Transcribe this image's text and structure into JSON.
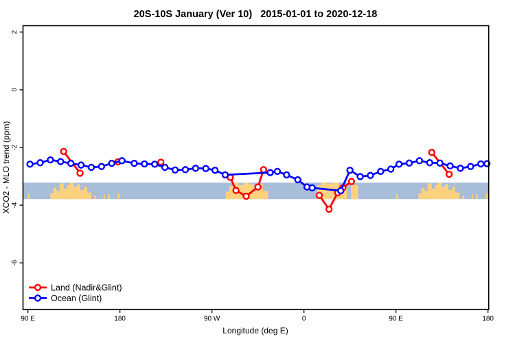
{
  "page": {
    "background": "#ffffff"
  },
  "chart_data": {
    "type": "line",
    "title": "20S-10S January (Ver 10)   2015-01-01 to 2020-12-18",
    "xlabel": "Longitude (deg E)",
    "ylabel": "XCO2 - MLO trend (ppm)",
    "xlim": [
      85.2,
      540.7
    ],
    "ylim": [
      -7.62,
      2.22
    ],
    "grid": "off",
    "legend_position": "bottom-left",
    "x_ticks": [
      {
        "value": 90,
        "label": "90 E"
      },
      {
        "value": 180,
        "label": "180"
      },
      {
        "value": 270,
        "label": "90 W"
      },
      {
        "value": 360,
        "label": "0"
      },
      {
        "value": 450,
        "label": "90 E"
      },
      {
        "value": 540,
        "label": "180"
      }
    ],
    "y_ticks": [
      {
        "value": 2,
        "label": "2"
      },
      {
        "value": 0,
        "label": "0"
      },
      {
        "value": -2,
        "label": "-2"
      },
      {
        "value": -4,
        "label": "-4"
      },
      {
        "value": -6,
        "label": "-6"
      }
    ],
    "reference_band": {
      "y_from": -3.22,
      "y_to": -3.79,
      "color": "#a8bdd8"
    },
    "land_mask": {
      "color": "#ffd27e",
      "blocks": [
        [
          90,
          91.5,
          0.3
        ],
        [
          112,
          115,
          0.35
        ],
        [
          115,
          118,
          0.7
        ],
        [
          118,
          121,
          0.5
        ],
        [
          121,
          125,
          0.95
        ],
        [
          125,
          128,
          0.65
        ],
        [
          128,
          131,
          0.85
        ],
        [
          131,
          135,
          1
        ],
        [
          135,
          138,
          0.75
        ],
        [
          138,
          141,
          0.9
        ],
        [
          141,
          145,
          0.55
        ],
        [
          145,
          148,
          0.75
        ],
        [
          148,
          152,
          0.4
        ],
        [
          155,
          156.5,
          0.2
        ],
        [
          164,
          165.5,
          0.25
        ],
        [
          168.5,
          170,
          0.3
        ],
        [
          178,
          179.5,
          0.35
        ],
        [
          283.5,
          287,
          0.45
        ],
        [
          287,
          291,
          0.8
        ],
        [
          291,
          296,
          1
        ],
        [
          296,
          301,
          0.85
        ],
        [
          301,
          306,
          1
        ],
        [
          306,
          311,
          0.9
        ],
        [
          311,
          316,
          0.7
        ],
        [
          316,
          320,
          0.9
        ],
        [
          320,
          325,
          0.5
        ],
        [
          373,
          377,
          0.85
        ],
        [
          377,
          382,
          1
        ],
        [
          382,
          388,
          0.95
        ],
        [
          388,
          394,
          1
        ],
        [
          394,
          398,
          0.8
        ],
        [
          398,
          402,
          0.65
        ],
        [
          406,
          413,
          0.85
        ],
        [
          450,
          451.5,
          0.3
        ],
        [
          472,
          475,
          0.35
        ],
        [
          475,
          478,
          0.7
        ],
        [
          478,
          481,
          0.5
        ],
        [
          481,
          485,
          0.95
        ],
        [
          485,
          488,
          0.65
        ],
        [
          488,
          491,
          0.85
        ],
        [
          491,
          495,
          1
        ],
        [
          495,
          498,
          0.75
        ],
        [
          498,
          501,
          0.9
        ],
        [
          501,
          505,
          0.55
        ],
        [
          505,
          508,
          0.75
        ],
        [
          508,
          512,
          0.4
        ],
        [
          515,
          516.5,
          0.2
        ],
        [
          524,
          525.5,
          0.25
        ],
        [
          528.5,
          530,
          0.3
        ],
        [
          538,
          539.5,
          0.35
        ]
      ]
    },
    "series": [
      {
        "name": "Land (Nadir&Glint)",
        "color": "#ff0000",
        "segments": [
          [
            [
              125,
              -2.14
            ],
            [
              141,
              -2.89
            ]
          ],
          [
            [
              178,
              -2.5
            ]
          ],
          [
            [
              220,
              -2.51
            ]
          ],
          [
            [
              288,
              -3.04
            ],
            [
              293.5,
              -3.49
            ],
            [
              303.5,
              -3.69
            ],
            [
              315,
              -3.37
            ],
            [
              320.5,
              -2.77
            ]
          ],
          [
            [
              375,
              -3.66
            ],
            [
              384.5,
              -4.14
            ],
            [
              393,
              -3.57
            ],
            [
              398,
              -3.4
            ],
            [
              406.5,
              -3.18
            ]
          ],
          [
            [
              485,
              -2.17
            ],
            [
              502,
              -2.93
            ]
          ]
        ]
      },
      {
        "name": "Ocean (Glint)",
        "color": "#0000ff",
        "segments": [
          [
            [
              92,
              -2.58
            ],
            [
              102,
              -2.53
            ],
            [
              112,
              -2.43
            ],
            [
              122,
              -2.49
            ],
            [
              132,
              -2.55
            ],
            [
              142,
              -2.61
            ],
            [
              152,
              -2.69
            ],
            [
              162,
              -2.66
            ],
            [
              172,
              -2.55
            ],
            [
              182,
              -2.46
            ],
            [
              194,
              -2.55
            ],
            [
              204,
              -2.57
            ],
            [
              214,
              -2.58
            ],
            [
              224,
              -2.69
            ],
            [
              234,
              -2.78
            ],
            [
              244,
              -2.77
            ],
            [
              254,
              -2.72
            ],
            [
              264,
              -2.73
            ],
            [
              273,
              -2.79
            ],
            [
              283,
              -2.95
            ],
            [
              327,
              -2.87
            ],
            [
              334,
              -2.83
            ],
            [
              343,
              -2.95
            ],
            [
              354,
              -3.12
            ],
            [
              363,
              -3.37
            ],
            [
              368,
              -3.4
            ],
            [
              396,
              -3.5
            ],
            [
              405,
              -2.79
            ],
            [
              415,
              -3.01
            ],
            [
              425,
              -2.97
            ],
            [
              435,
              -2.83
            ],
            [
              445,
              -2.75
            ],
            [
              453,
              -2.58
            ],
            [
              463,
              -2.54
            ],
            [
              473,
              -2.46
            ],
            [
              483,
              -2.53
            ],
            [
              493,
              -2.54
            ],
            [
              503,
              -2.64
            ],
            [
              513,
              -2.72
            ],
            [
              523,
              -2.66
            ],
            [
              533,
              -2.57
            ],
            [
              539,
              -2.56
            ]
          ]
        ]
      }
    ]
  }
}
